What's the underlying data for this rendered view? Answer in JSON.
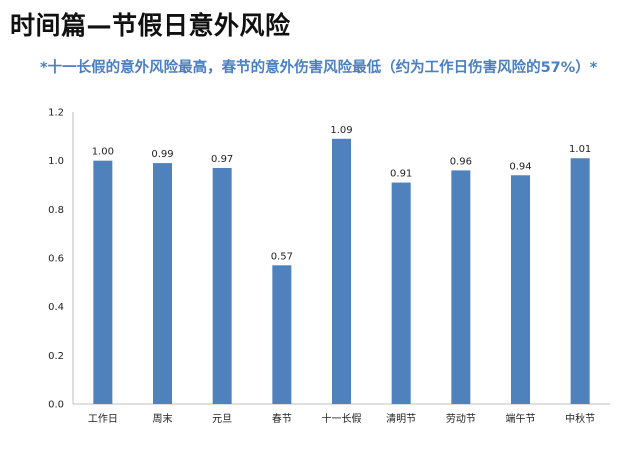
{
  "title": "时间篇—节假日意外风险",
  "subtitle": "*十一长假的意外风险最高，春节的意外伤害风险最低（约为工作日伤害风险的57%）*",
  "chart_data": {
    "type": "bar",
    "categories": [
      "工作日",
      "周末",
      "元旦",
      "春节",
      "十一长假",
      "清明节",
      "劳动节",
      "端午节",
      "中秋节"
    ],
    "values": [
      1.0,
      0.99,
      0.97,
      0.57,
      1.09,
      0.91,
      0.96,
      0.94,
      1.01
    ],
    "data_labels": [
      "1.00",
      "0.99",
      "0.97",
      "0.57",
      "1.09",
      "0.91",
      "0.96",
      "0.94",
      "1.01"
    ],
    "yticks": [
      "0.0",
      "0.2",
      "0.4",
      "0.6",
      "0.8",
      "1.0",
      "1.2"
    ],
    "ylim": [
      0,
      1.2
    ],
    "bar_color": "#4f81bd",
    "grid": false,
    "legend": "none"
  }
}
